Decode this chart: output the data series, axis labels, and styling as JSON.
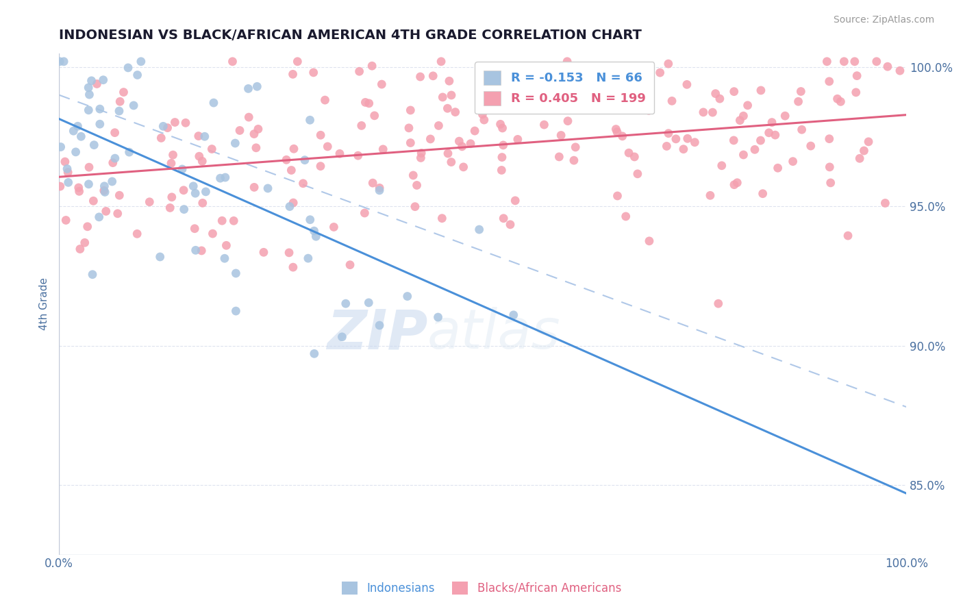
{
  "title": "INDONESIAN VS BLACK/AFRICAN AMERICAN 4TH GRADE CORRELATION CHART",
  "source": "Source: ZipAtlas.com",
  "ylabel": "4th Grade",
  "xlim": [
    0.0,
    1.0
  ],
  "ylim": [
    0.825,
    1.005
  ],
  "yticks": [
    0.85,
    0.9,
    0.95,
    1.0
  ],
  "ytick_labels": [
    "85.0%",
    "90.0%",
    "95.0%",
    "100.0%"
  ],
  "blue_R": -0.153,
  "blue_N": 66,
  "pink_R": 0.405,
  "pink_N": 199,
  "blue_color": "#a8c4e0",
  "pink_color": "#f4a0b0",
  "blue_line_color": "#4a90d9",
  "pink_line_color": "#e06080",
  "dashed_line_color": "#b0c8e8",
  "legend_label_blue": "Indonesians",
  "legend_label_pink": "Blacks/African Americans",
  "watermark_zip": "ZIP",
  "watermark_atlas": "atlas",
  "title_color": "#1a1a2e",
  "axis_label_color": "#4a70a0",
  "tick_color": "#4a70a0",
  "background_color": "#ffffff",
  "blue_seed": 42,
  "pink_seed": 7
}
